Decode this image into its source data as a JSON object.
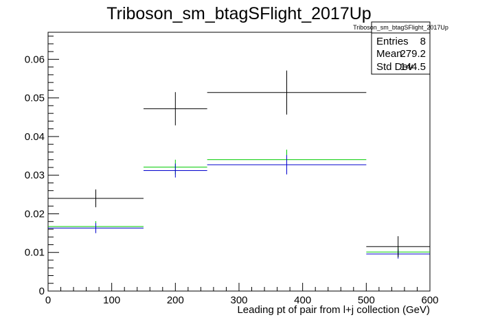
{
  "chart_data": {
    "type": "histogram",
    "title": "Triboson_sm_btagSFlight_2017Up",
    "xlabel": "Leading pt of pair from l+j collection (GeV)",
    "ylabel": "",
    "xlim": [
      0,
      600
    ],
    "ylim": [
      0,
      0.067
    ],
    "xticks": [
      0,
      100,
      200,
      300,
      400,
      500,
      600
    ],
    "yticks": [
      0,
      0.01,
      0.02,
      0.03,
      0.04,
      0.05,
      0.06
    ],
    "xtick_labels": [
      "0",
      "100",
      "200",
      "300",
      "400",
      "500",
      "600"
    ],
    "ytick_labels": [
      "0",
      "0.01",
      "0.02",
      "0.03",
      "0.04",
      "0.05",
      "0.06"
    ],
    "grid": false,
    "bins": [
      [
        0,
        150
      ],
      [
        150,
        250
      ],
      [
        250,
        500
      ],
      [
        500,
        600
      ]
    ],
    "series": [
      {
        "color": "#000000",
        "values": [
          0.024,
          0.0472,
          0.0514,
          0.0115
        ],
        "errors": [
          0.0023,
          0.0043,
          0.0057,
          0.0027
        ],
        "marker_x": [
          75,
          200,
          375,
          550
        ]
      },
      {
        "color": "#00cc00",
        "values": [
          0.0167,
          0.0321,
          0.034,
          0.0101
        ],
        "errors": [
          0.0014,
          0.0019,
          0.0026,
          0.0012
        ],
        "marker_x": [
          75,
          200,
          375,
          550
        ]
      },
      {
        "color": "#0000cc",
        "values": [
          0.0163,
          0.0312,
          0.0327,
          0.0096
        ],
        "errors": [
          0.0013,
          0.0018,
          0.0025,
          0.0012
        ],
        "marker_x": [
          75,
          200,
          375,
          550
        ]
      }
    ],
    "stats_box": {
      "name": "Triboson_sm_btagSFlight_2017Up",
      "rows": [
        {
          "label": "Entries",
          "value": "8"
        },
        {
          "label": "Mean",
          "value": "279.2"
        },
        {
          "label": "Std Dev",
          "value": "144.5"
        }
      ],
      "placement": "top-right"
    }
  }
}
